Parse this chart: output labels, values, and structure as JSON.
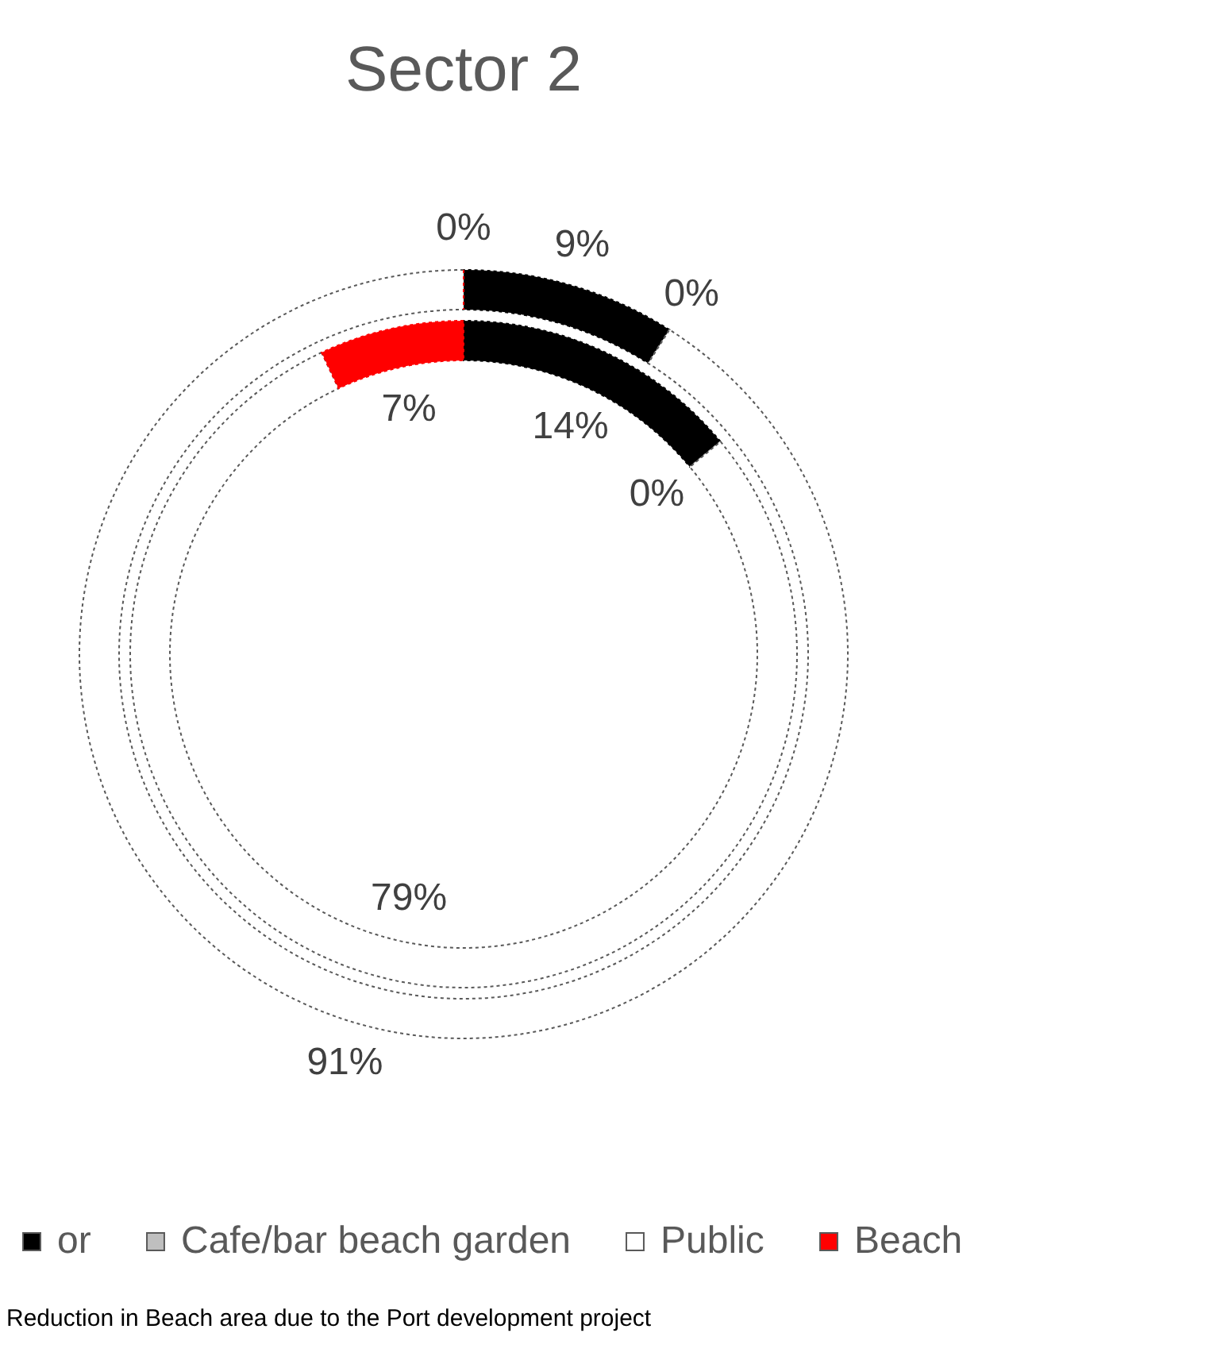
{
  "chart_data": {
    "type": "donut",
    "title": "Sector 2",
    "categories": [
      "or",
      "Cafe/bar beach garden",
      "Public",
      "Beach"
    ],
    "colors": [
      "#000000",
      "#bfbfbf",
      "#ffffff",
      "#ff0000"
    ],
    "series": [
      {
        "values": [
          9,
          0,
          91,
          0
        ],
        "value_labels": [
          "9%",
          "0%",
          "91%",
          "0%"
        ]
      },
      {
        "values": [
          14,
          0,
          79,
          7
        ],
        "value_labels": [
          "14%",
          "0%",
          "79%",
          "7%"
        ]
      }
    ],
    "legend": "bottom",
    "annotations": [
      "Reduction in Beach area due to the Port development project"
    ]
  }
}
